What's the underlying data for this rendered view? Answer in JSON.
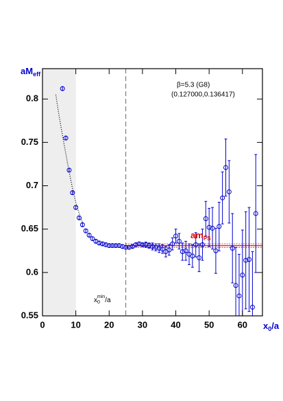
{
  "chart_data": {
    "type": "scatter",
    "ylabel": "aM",
    "ylabel_sub": "eff",
    "xlabel": "x",
    "xlabel_sub": "0",
    "xlabel_suffix": "/a",
    "annotations": {
      "beta": "β=5.3 (G8)",
      "kappa": "(0.127000,0.136417)",
      "fit_label": "am",
      "fit_label_sub": "PS",
      "xmin_label": "x",
      "xmin_sub": "0",
      "xmin_sup": "min",
      "xmin_suffix": "/a"
    },
    "xlim": [
      0,
      66
    ],
    "ylim": [
      0.55,
      0.835
    ],
    "xticks": [
      0,
      10,
      20,
      30,
      40,
      50,
      60
    ],
    "yticks": [
      0.55,
      0.6,
      0.65,
      0.7,
      0.75,
      0.8
    ],
    "shaded_region": [
      0,
      10
    ],
    "xmin_line": 25,
    "fit": {
      "value": 0.631,
      "error": 0.002,
      "range": [
        25,
        66
      ],
      "color": "#e00000"
    },
    "curve": {
      "x": [
        4,
        5,
        6,
        7,
        8,
        9,
        10,
        11,
        12
      ],
      "y": [
        0.805,
        0.78,
        0.758,
        0.737,
        0.716,
        0.697,
        0.681,
        0.668,
        0.658
      ]
    },
    "x": [
      6,
      7,
      8,
      9,
      10,
      11,
      12,
      13,
      14,
      15,
      16,
      17,
      18,
      19,
      20,
      21,
      22,
      23,
      24,
      25,
      26,
      27,
      28,
      29,
      30,
      31,
      32,
      33,
      34,
      35,
      36,
      37,
      38,
      39,
      40,
      41,
      42,
      43,
      44,
      45,
      46,
      47,
      48,
      49,
      50,
      51,
      52,
      53,
      54,
      55,
      56,
      57,
      58,
      59,
      60,
      61,
      62,
      63,
      64
    ],
    "series": [
      {
        "color": "#0000d0",
        "values": [
          0.812,
          0.755,
          0.718,
          0.692,
          0.675,
          0.663,
          0.655,
          0.648,
          0.643,
          0.639,
          0.636,
          0.634,
          0.633,
          0.632,
          0.631,
          0.631,
          0.631,
          0.631,
          0.63,
          0.629,
          0.629,
          0.63,
          0.632,
          0.633,
          0.632,
          0.632,
          0.631,
          0.63,
          0.629,
          0.628,
          0.627,
          0.624,
          0.626,
          0.633,
          0.642,
          0.636,
          0.624,
          0.625,
          0.621,
          0.619,
          0.632,
          0.617,
          0.632,
          0.662,
          0.652,
          0.651,
          0.625,
          0.653,
          0.686,
          0.721,
          0.693,
          0.628,
          0.585,
          0.573,
          0.597,
          0.614,
          0.615,
          0.56,
          0.668
        ],
        "errors": [
          0.002,
          0.002,
          0.002,
          0.002,
          0.002,
          0.002,
          0.002,
          0.002,
          0.002,
          0.002,
          0.002,
          0.002,
          0.002,
          0.002,
          0.002,
          0.002,
          0.002,
          0.002,
          0.002,
          0.002,
          0.002,
          0.002,
          0.002,
          0.002,
          0.002,
          0.003,
          0.003,
          0.004,
          0.004,
          0.005,
          0.005,
          0.006,
          0.006,
          0.007,
          0.008,
          0.009,
          0.01,
          0.011,
          0.012,
          0.013,
          0.014,
          0.016,
          0.018,
          0.02,
          0.022,
          0.024,
          0.026,
          0.028,
          0.03,
          0.033,
          0.036,
          0.04,
          0.044,
          0.048,
          0.052,
          0.056,
          0.06,
          0.064,
          0.068
        ]
      }
    ]
  }
}
